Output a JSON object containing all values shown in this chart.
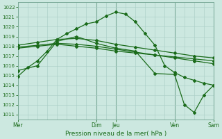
{
  "title": "Pression niveau de la mer( hPa )",
  "background_color": "#cce8e0",
  "grid_color": "#a8ccc4",
  "line_color": "#1a6b1a",
  "xlim": [
    0,
    5
  ],
  "ylim": [
    1010.5,
    1022.5
  ],
  "yticks": [
    1011,
    1012,
    1013,
    1014,
    1015,
    1016,
    1017,
    1018,
    1019,
    1020,
    1021,
    1022
  ],
  "xtick_positions": [
    0,
    2,
    2.5,
    4,
    5
  ],
  "xtick_labels": [
    "Mer",
    "Dim",
    "Jeu",
    "Ven",
    "Sam"
  ],
  "series": [
    {
      "x": [
        0,
        0.25,
        0.5,
        0.75,
        1.0,
        1.25,
        1.5,
        1.75,
        2.0,
        2.25,
        2.5,
        2.75,
        3.0,
        3.25,
        3.5,
        3.75,
        4.0,
        4.25,
        4.5,
        4.75,
        5.0
      ],
      "y": [
        1014.9,
        1015.8,
        1016.5,
        1017.5,
        1018.7,
        1019.3,
        1019.8,
        1020.3,
        1020.5,
        1021.1,
        1021.5,
        1021.3,
        1020.5,
        1019.3,
        1018.1,
        1016.0,
        1015.3,
        1014.8,
        1014.5,
        1014.2,
        1014.0
      ]
    },
    {
      "x": [
        0,
        0.5,
        1.0,
        1.5,
        2.0,
        2.5,
        3.0,
        3.5,
        4.0,
        4.5,
        5.0
      ],
      "y": [
        1017.8,
        1018.0,
        1018.2,
        1018.0,
        1017.8,
        1017.5,
        1017.3,
        1017.1,
        1016.9,
        1016.7,
        1016.5
      ]
    },
    {
      "x": [
        0,
        0.5,
        1.0,
        1.5,
        2.0,
        2.5,
        3.0,
        3.5,
        4.0,
        4.5,
        5.0
      ],
      "y": [
        1017.9,
        1018.1,
        1018.3,
        1018.2,
        1018.0,
        1017.7,
        1017.4,
        1017.1,
        1016.8,
        1016.5,
        1016.2
      ]
    },
    {
      "x": [
        0,
        0.5,
        1.0,
        1.5,
        2.0,
        2.5,
        3.0,
        3.5,
        4.0,
        4.5,
        5.0
      ],
      "y": [
        1018.1,
        1018.4,
        1018.7,
        1018.8,
        1018.6,
        1018.2,
        1017.9,
        1017.6,
        1017.3,
        1017.0,
        1016.8
      ]
    },
    {
      "x": [
        0,
        0.5,
        1.0,
        1.5,
        2.0,
        2.5,
        3.0,
        3.5,
        4.0,
        4.25,
        4.5,
        4.75,
        5.0
      ],
      "y": [
        1015.5,
        1016.0,
        1018.5,
        1019.0,
        1018.3,
        1017.8,
        1017.5,
        1015.2,
        1015.1,
        1012.0,
        1011.2,
        1013.0,
        1014.0
      ]
    }
  ]
}
